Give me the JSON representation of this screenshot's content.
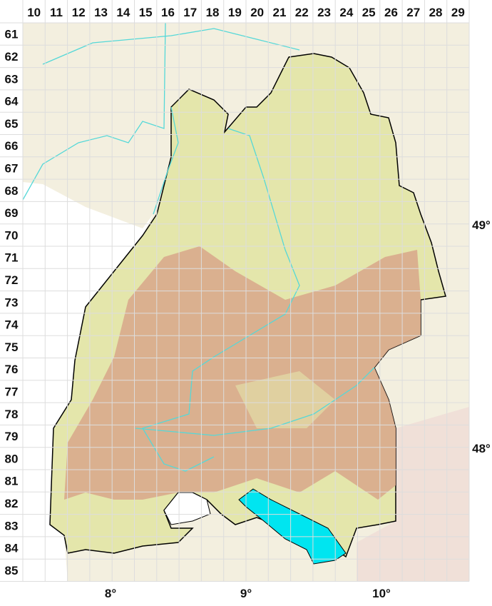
{
  "grid": {
    "columns": [
      "10",
      "11",
      "12",
      "13",
      "14",
      "15",
      "16",
      "17",
      "18",
      "19",
      "20",
      "21",
      "22",
      "23",
      "24",
      "25",
      "26",
      "27",
      "28",
      "29"
    ],
    "rows": [
      "61",
      "62",
      "63",
      "64",
      "65",
      "66",
      "67",
      "68",
      "69",
      "70",
      "71",
      "72",
      "73",
      "74",
      "75",
      "76",
      "77",
      "78",
      "79",
      "80",
      "81",
      "82",
      "83",
      "84",
      "85"
    ]
  },
  "longitude_labels": [
    "8°",
    "9°",
    "10°"
  ],
  "latitude_labels": [
    "49°",
    "48°"
  ],
  "colors": {
    "background_land": "#f3efdf",
    "foreign_white": "#ffffff",
    "lowland": "#e4e6ab",
    "upland": "#d8aa8c",
    "lake": "#00e5f0",
    "river": "#55d8d8",
    "border": "#000000",
    "grid": "#dddddd"
  }
}
